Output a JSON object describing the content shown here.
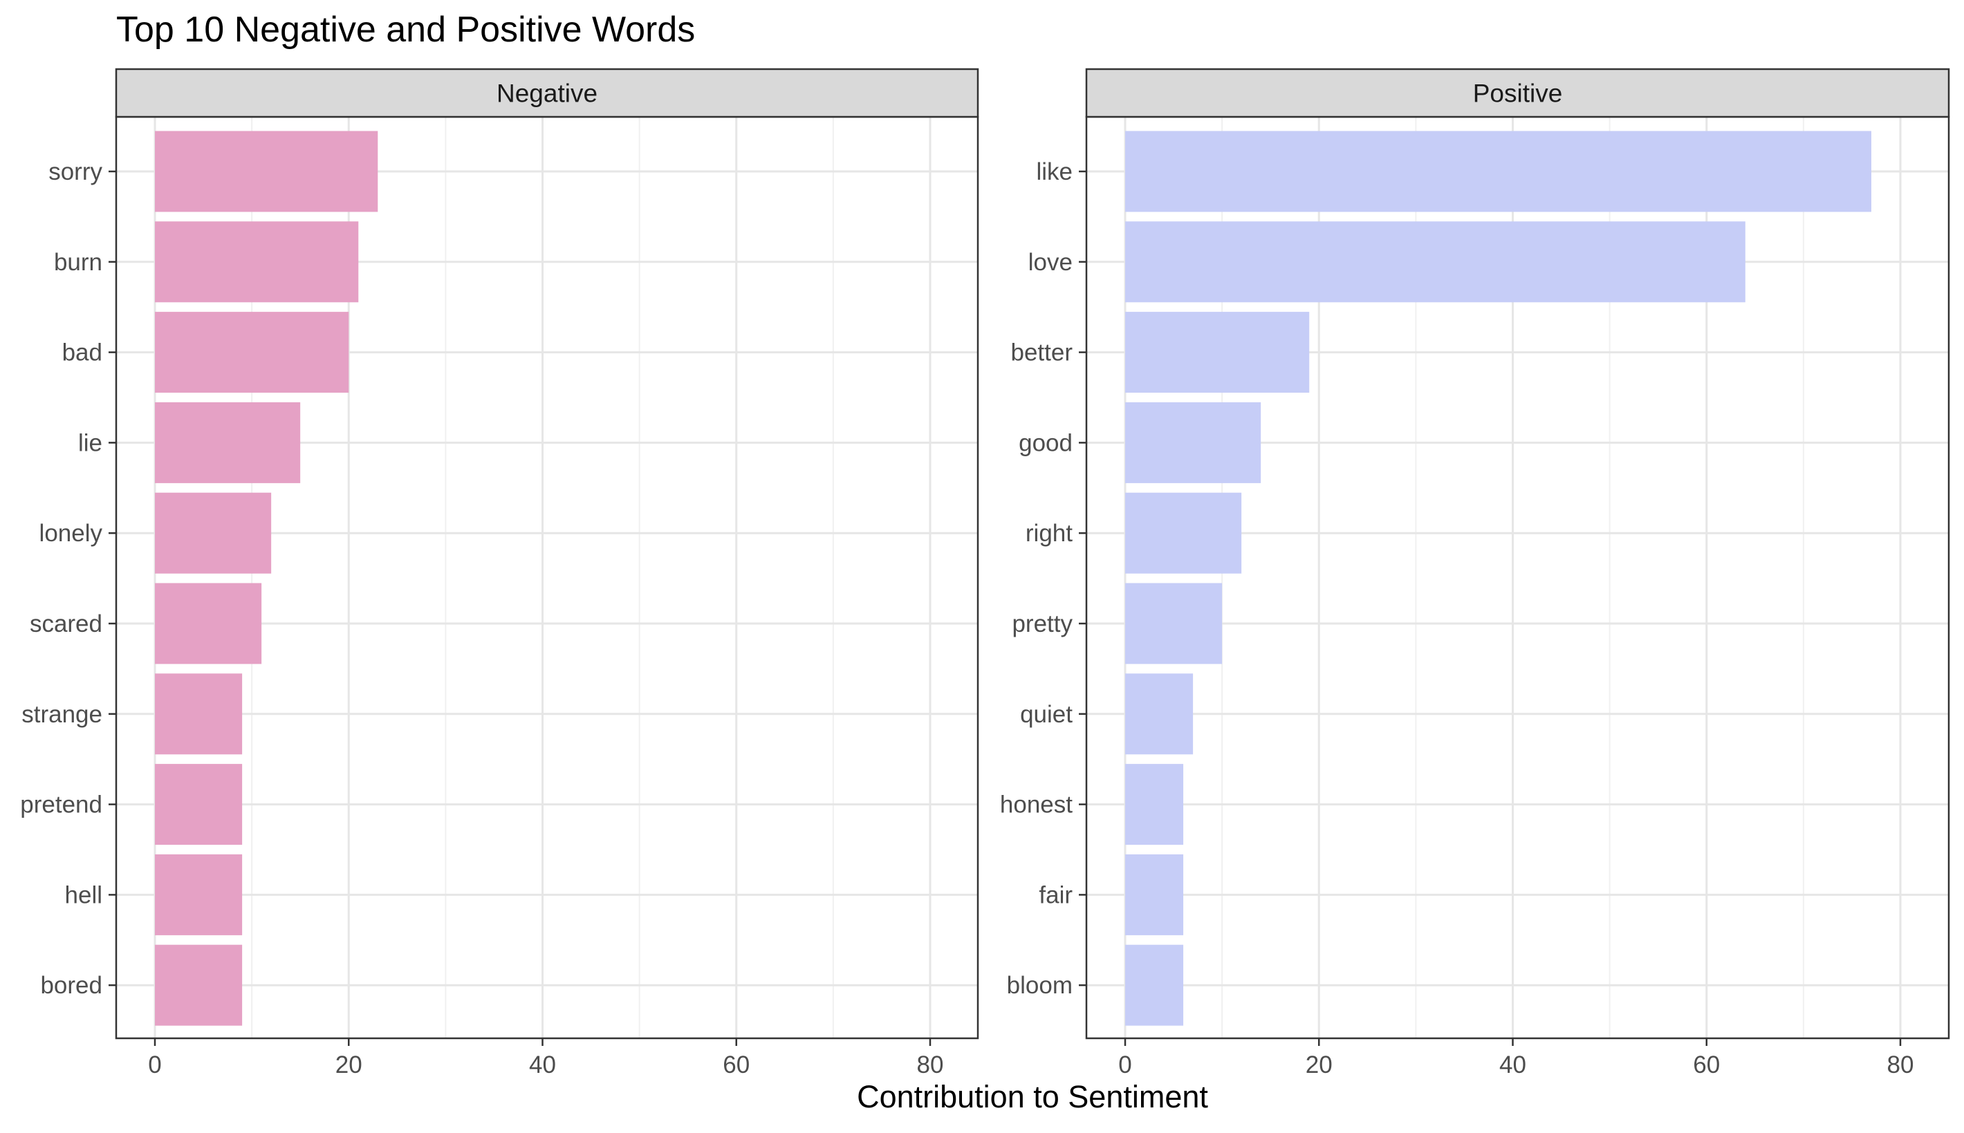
{
  "chart_data": {
    "type": "bar",
    "orientation": "horizontal",
    "title": "Top 10 Negative and Positive Words",
    "xlabel": "Contribution to Sentiment",
    "ylabel": "",
    "xlim": [
      0,
      80
    ],
    "x_ticks": [
      0,
      20,
      40,
      60,
      80
    ],
    "grid": true,
    "panels": [
      {
        "name": "Negative",
        "color": "#E5A1C5",
        "categories": [
          "sorry",
          "burn",
          "bad",
          "lie",
          "lonely",
          "scared",
          "strange",
          "pretend",
          "hell",
          "bored"
        ],
        "values": [
          23,
          21,
          20,
          15,
          12,
          11,
          9,
          9,
          9,
          9
        ]
      },
      {
        "name": "Positive",
        "color": "#C6CDF7",
        "categories": [
          "like",
          "love",
          "better",
          "good",
          "right",
          "pretty",
          "quiet",
          "honest",
          "fair",
          "bloom"
        ],
        "values": [
          77,
          64,
          19,
          14,
          12,
          10,
          7,
          6,
          6,
          6
        ]
      }
    ]
  }
}
